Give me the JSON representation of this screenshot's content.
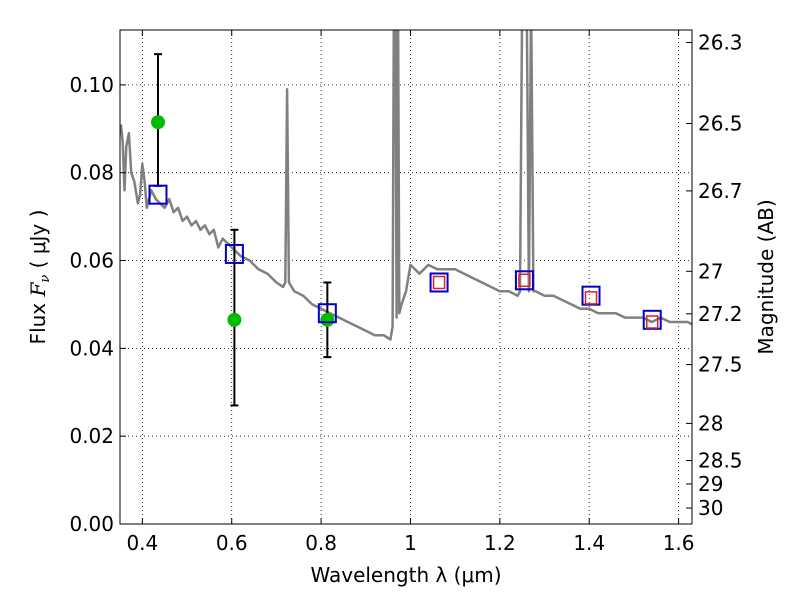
{
  "chart_data": {
    "type": "scatter",
    "xlabel": "Wavelength  λ (μm)",
    "ylabel_prefix": "Flux  ",
    "ylabel_symbol": "F",
    "ylabel_sub": "ν",
    "ylabel_suffix": "  ( μJy )",
    "y2label": "Magnitude (AB)",
    "xlim": [
      0.35,
      1.63
    ],
    "ylim": [
      0.0,
      0.1125
    ],
    "grid": true,
    "xticks": [
      {
        "v": 0.4,
        "label": "0.4"
      },
      {
        "v": 0.6,
        "label": "0.6"
      },
      {
        "v": 0.8,
        "label": "0.8"
      },
      {
        "v": 1.0,
        "label": "1"
      },
      {
        "v": 1.2,
        "label": "1.2"
      },
      {
        "v": 1.4,
        "label": "1.4"
      },
      {
        "v": 1.6,
        "label": "1.6"
      }
    ],
    "yticks": [
      {
        "v": 0.0,
        "label": "0.00"
      },
      {
        "v": 0.02,
        "label": "0.02"
      },
      {
        "v": 0.04,
        "label": "0.04"
      },
      {
        "v": 0.06,
        "label": "0.06"
      },
      {
        "v": 0.08,
        "label": "0.08"
      },
      {
        "v": 0.1,
        "label": "0.10"
      }
    ],
    "mag_ticks": [
      {
        "mag": 26.3,
        "label": "26.3"
      },
      {
        "mag": 26.5,
        "label": "26.5"
      },
      {
        "mag": 26.7,
        "label": "26.7"
      },
      {
        "mag": 27.0,
        "label": "27"
      },
      {
        "mag": 27.2,
        "label": "27.2"
      },
      {
        "mag": 27.5,
        "label": "27.5"
      },
      {
        "mag": 28.0,
        "label": "28"
      },
      {
        "mag": 28.5,
        "label": "28.5"
      },
      {
        "mag": 29.0,
        "label": "29"
      },
      {
        "mag": 30.0,
        "label": "30"
      }
    ],
    "series": [
      {
        "role": "template-spectrum",
        "color": "#808080",
        "points": [
          [
            0.352,
            0.091
          ],
          [
            0.356,
            0.087
          ],
          [
            0.36,
            0.076
          ],
          [
            0.364,
            0.086
          ],
          [
            0.37,
            0.089
          ],
          [
            0.375,
            0.08
          ],
          [
            0.382,
            0.078
          ],
          [
            0.39,
            0.073
          ],
          [
            0.395,
            0.075
          ],
          [
            0.4,
            0.082
          ],
          [
            0.405,
            0.078
          ],
          [
            0.41,
            0.072
          ],
          [
            0.42,
            0.076
          ],
          [
            0.43,
            0.074
          ],
          [
            0.44,
            0.073
          ],
          [
            0.45,
            0.072
          ],
          [
            0.46,
            0.074
          ],
          [
            0.47,
            0.071
          ],
          [
            0.48,
            0.072
          ],
          [
            0.49,
            0.069
          ],
          [
            0.5,
            0.07
          ],
          [
            0.51,
            0.068
          ],
          [
            0.52,
            0.069
          ],
          [
            0.53,
            0.067
          ],
          [
            0.54,
            0.068
          ],
          [
            0.55,
            0.066
          ],
          [
            0.56,
            0.067
          ],
          [
            0.57,
            0.063
          ],
          [
            0.58,
            0.065
          ],
          [
            0.6,
            0.063
          ],
          [
            0.62,
            0.061
          ],
          [
            0.64,
            0.06
          ],
          [
            0.66,
            0.058
          ],
          [
            0.68,
            0.057
          ],
          [
            0.7,
            0.055
          ],
          [
            0.715,
            0.054
          ],
          [
            0.72,
            0.055
          ],
          [
            0.724,
            0.099
          ],
          [
            0.728,
            0.055
          ],
          [
            0.74,
            0.053
          ],
          [
            0.76,
            0.052
          ],
          [
            0.78,
            0.05
          ],
          [
            0.8,
            0.049
          ],
          [
            0.82,
            0.048
          ],
          [
            0.84,
            0.047
          ],
          [
            0.86,
            0.046
          ],
          [
            0.88,
            0.045
          ],
          [
            0.9,
            0.044
          ],
          [
            0.92,
            0.043
          ],
          [
            0.94,
            0.043
          ],
          [
            0.955,
            0.042
          ],
          [
            0.96,
            0.045
          ],
          [
            0.963,
            0.12
          ],
          [
            0.966,
            0.12
          ],
          [
            0.969,
            0.047
          ],
          [
            0.972,
            0.12
          ],
          [
            0.975,
            0.048
          ],
          [
            0.98,
            0.05
          ],
          [
            0.99,
            0.053
          ],
          [
            1.0,
            0.059
          ],
          [
            1.01,
            0.058
          ],
          [
            1.02,
            0.057
          ],
          [
            1.03,
            0.058
          ],
          [
            1.04,
            0.059
          ],
          [
            1.06,
            0.058
          ],
          [
            1.08,
            0.058
          ],
          [
            1.1,
            0.058
          ],
          [
            1.12,
            0.057
          ],
          [
            1.14,
            0.056
          ],
          [
            1.16,
            0.055
          ],
          [
            1.18,
            0.054
          ],
          [
            1.2,
            0.053
          ],
          [
            1.22,
            0.053
          ],
          [
            1.24,
            0.052
          ],
          [
            1.245,
            0.053
          ],
          [
            1.25,
            0.12
          ],
          [
            1.26,
            0.12
          ],
          [
            1.265,
            0.053
          ],
          [
            1.27,
            0.12
          ],
          [
            1.275,
            0.053
          ],
          [
            1.28,
            0.053
          ],
          [
            1.3,
            0.052
          ],
          [
            1.32,
            0.052
          ],
          [
            1.34,
            0.051
          ],
          [
            1.36,
            0.05
          ],
          [
            1.38,
            0.049
          ],
          [
            1.4,
            0.049
          ],
          [
            1.42,
            0.048
          ],
          [
            1.44,
            0.048
          ],
          [
            1.46,
            0.048
          ],
          [
            1.48,
            0.047
          ],
          [
            1.5,
            0.047
          ],
          [
            1.52,
            0.047
          ],
          [
            1.54,
            0.046
          ],
          [
            1.56,
            0.047
          ],
          [
            1.58,
            0.046
          ],
          [
            1.6,
            0.046
          ],
          [
            1.62,
            0.046
          ],
          [
            1.63,
            0.0455
          ]
        ]
      },
      {
        "role": "observed-flux-errorbars",
        "color": "#000000",
        "points": [
          {
            "x": 0.435,
            "y": 0.0915,
            "lo": 0.077,
            "hi": 0.107
          },
          {
            "x": 0.606,
            "y": 0.0465,
            "lo": 0.027,
            "hi": 0.067
          },
          {
            "x": 0.814,
            "y": 0.0465,
            "lo": 0.038,
            "hi": 0.055
          }
        ]
      },
      {
        "role": "green-dots",
        "color": "#00bb00",
        "points": [
          [
            0.435,
            0.0915
          ],
          [
            0.606,
            0.0465
          ],
          [
            0.814,
            0.0465
          ]
        ]
      },
      {
        "role": "model-squares-blue",
        "color": "#0000cc",
        "points": [
          [
            0.435,
            0.075
          ],
          [
            0.606,
            0.0615
          ],
          [
            0.814,
            0.048
          ],
          [
            1.064,
            0.055
          ],
          [
            1.255,
            0.0555
          ],
          [
            1.404,
            0.052
          ],
          [
            1.541,
            0.0465
          ]
        ]
      },
      {
        "role": "model-squares-red",
        "color": "#dd2222",
        "points": [
          [
            1.064,
            0.055
          ],
          [
            1.255,
            0.0555
          ],
          [
            1.404,
            0.0515
          ],
          [
            1.541,
            0.046
          ]
        ]
      }
    ]
  }
}
